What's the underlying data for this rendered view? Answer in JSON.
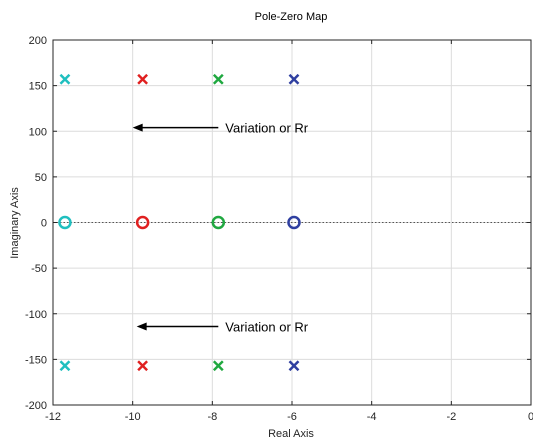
{
  "chart_data": {
    "type": "scatter",
    "title": "Pole-Zero Map",
    "xlabel": "Real Axis",
    "ylabel": "Imaginary Axis",
    "xlim": [
      -12,
      0
    ],
    "ylim": [
      -200,
      200
    ],
    "xticks": [
      -12,
      -10,
      -8,
      -6,
      -4,
      -2,
      0
    ],
    "yticks": [
      -200,
      -150,
      -100,
      -50,
      0,
      50,
      100,
      150,
      200
    ],
    "xtick_labels": [
      "-12",
      "-10",
      "-8",
      "-6",
      "-4",
      "-2",
      "0"
    ],
    "ytick_labels": [
      "-200",
      "-150",
      "-100",
      "-50",
      "0",
      "50",
      "100",
      "150",
      "200"
    ],
    "grid": true,
    "series": [
      {
        "color": "#1fbfbf",
        "poles": [
          {
            "x": -11.7,
            "y": 157
          },
          {
            "x": -11.7,
            "y": -157
          }
        ],
        "zeros": [
          {
            "x": -11.7,
            "y": 0
          }
        ]
      },
      {
        "color": "#e02020",
        "poles": [
          {
            "x": -9.75,
            "y": 157
          },
          {
            "x": -9.75,
            "y": -157
          }
        ],
        "zeros": [
          {
            "x": -9.75,
            "y": 0
          }
        ]
      },
      {
        "color": "#20a840",
        "poles": [
          {
            "x": -7.85,
            "y": 157
          },
          {
            "x": -7.85,
            "y": -157
          }
        ],
        "zeros": [
          {
            "x": -7.85,
            "y": 0
          }
        ]
      },
      {
        "color": "#2f3fa0",
        "poles": [
          {
            "x": -5.95,
            "y": 157
          },
          {
            "x": -5.95,
            "y": -157
          }
        ],
        "zeros": [
          {
            "x": -5.95,
            "y": 0
          }
        ]
      }
    ],
    "annotations": [
      {
        "text": "Variation or Rr",
        "arrow_from": {
          "x": -7.85,
          "y": 104
        },
        "arrow_to": {
          "x": -10.0,
          "y": 104
        }
      },
      {
        "text": "Variation or Rr",
        "arrow_from": {
          "x": -7.85,
          "y": -114
        },
        "arrow_to": {
          "x": -9.9,
          "y": -114
        }
      }
    ]
  }
}
